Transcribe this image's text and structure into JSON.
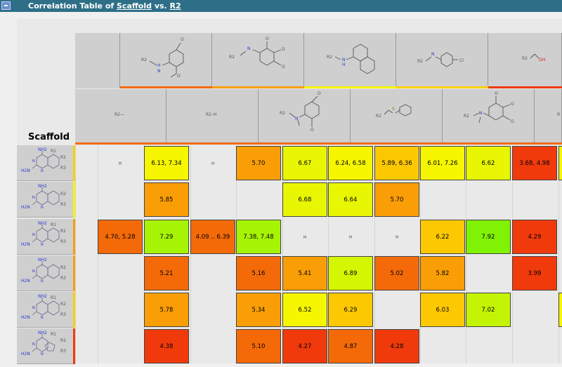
{
  "window": {
    "title_prefix": "Correlation Table of ",
    "title_scaffold": "Scaffold",
    "title_vs": " vs. ",
    "title_r2": "R2"
  },
  "table": {
    "scaffold_header": "Scaffold",
    "r2_top_labels": [
      "R2",
      "R2",
      "R2",
      "R2",
      "R2"
    ],
    "r2_top_extra": [
      "",
      "",
      "",
      "Cl",
      "OH"
    ],
    "r2_bottom_labels": [
      "R2—",
      "R2–H",
      "R2",
      "R2",
      "R2"
    ],
    "scaffold_labels": {
      "nh2": "NH2",
      "h2n": "H2N",
      "n": "N",
      "r1": "R1",
      "r2": "R2",
      "r3": "R3"
    },
    "colors": {
      "red": "#f03a0c",
      "orange_red": "#f46a08",
      "orange": "#f99e06",
      "yellow_orange": "#fcc802",
      "yellow": "#f6f600",
      "yellow_green": "#d4f603",
      "green": "#7ff206"
    },
    "rows": [
      [
        {
          "text": "¤",
          "empty": true
        },
        {
          "text": "6.13, 7.34",
          "color": "#f6f600"
        },
        {
          "text": "¤",
          "empty": true
        },
        {
          "text": "5.70",
          "color": "#f99e06"
        },
        {
          "text": "6.67",
          "color": "#e8f603"
        },
        {
          "text": "6.24, 6.58",
          "color": "#f6f600"
        },
        {
          "text": "5.89, 6.36",
          "color": "#fcc802"
        },
        {
          "text": "6.01, 7.26",
          "color": "#f6f600"
        },
        {
          "text": "6.62",
          "color": "#e8f603"
        },
        {
          "text": "3.68, 4.98",
          "color": "#f03a0c"
        },
        {
          "text": "",
          "color": "#f6f600"
        }
      ],
      [
        null,
        {
          "text": "5.85",
          "color": "#f99e06"
        },
        null,
        null,
        {
          "text": "6.68",
          "color": "#e8f603"
        },
        {
          "text": "6.64",
          "color": "#e8f603"
        },
        {
          "text": "5.70",
          "color": "#f99e06"
        },
        null,
        null,
        null,
        null
      ],
      [
        {
          "text": "4.70, 5.28",
          "color": "#f46a08"
        },
        {
          "text": "7.29",
          "color": "#a6f404"
        },
        {
          "text": "4.09 .. 6.39",
          "color": "#f46a08"
        },
        {
          "text": "7.38, 7.48",
          "color": "#a6f404"
        },
        {
          "text": "¤",
          "empty": true
        },
        {
          "text": "¤",
          "empty": true
        },
        {
          "text": "¤",
          "empty": true
        },
        {
          "text": "6.22",
          "color": "#fcc802"
        },
        {
          "text": "7.92",
          "color": "#7ff206"
        },
        {
          "text": "4.29",
          "color": "#f03a0c"
        },
        null
      ],
      [
        null,
        {
          "text": "5.21",
          "color": "#f46a08"
        },
        null,
        {
          "text": "5.16",
          "color": "#f46a08"
        },
        {
          "text": "5.41",
          "color": "#f99e06"
        },
        {
          "text": "6.89",
          "color": "#d4f603"
        },
        {
          "text": "5.02",
          "color": "#f46a08"
        },
        {
          "text": "5.82",
          "color": "#f99e06"
        },
        null,
        {
          "text": "3.99",
          "color": "#f03a0c"
        },
        null
      ],
      [
        null,
        {
          "text": "5.78",
          "color": "#f99e06"
        },
        null,
        {
          "text": "5.34",
          "color": "#f99e06"
        },
        {
          "text": "6.52",
          "color": "#f6f600"
        },
        {
          "text": "6.29",
          "color": "#fcc802"
        },
        null,
        {
          "text": "6.03",
          "color": "#fcc802"
        },
        {
          "text": "7.02",
          "color": "#c2f404"
        },
        null,
        {
          "text": "",
          "color": "#f6f600"
        }
      ],
      [
        null,
        {
          "text": "4.38",
          "color": "#f03a0c"
        },
        null,
        {
          "text": "5.10",
          "color": "#f46a08"
        },
        {
          "text": "4.27",
          "color": "#f03a0c"
        },
        {
          "text": "4.87",
          "color": "#f46a08"
        },
        {
          "text": "4.28",
          "color": "#f03a0c"
        },
        null,
        null,
        null,
        null
      ]
    ]
  }
}
